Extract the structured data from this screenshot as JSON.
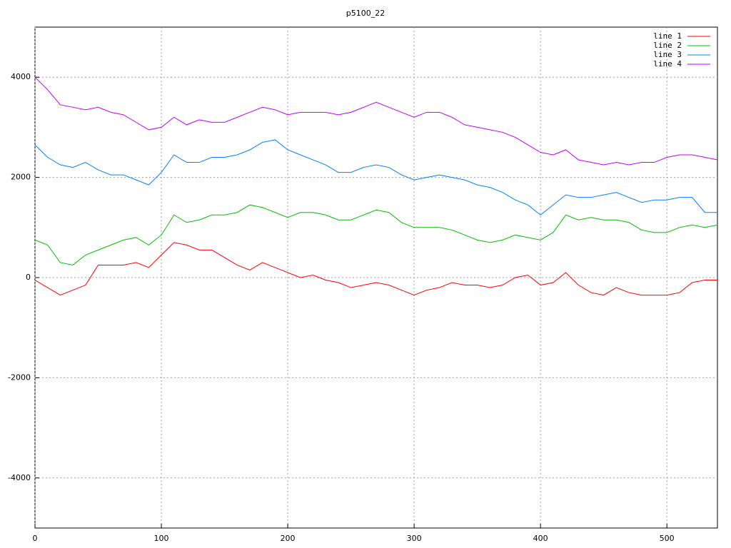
{
  "chart_data": {
    "type": "line",
    "title": "p5100_22",
    "x": [
      0,
      10,
      20,
      30,
      40,
      50,
      60,
      70,
      80,
      90,
      100,
      110,
      120,
      130,
      140,
      150,
      160,
      170,
      180,
      190,
      200,
      210,
      220,
      230,
      240,
      250,
      260,
      270,
      280,
      290,
      300,
      310,
      320,
      330,
      340,
      350,
      360,
      370,
      380,
      390,
      400,
      410,
      420,
      430,
      440,
      450,
      460,
      470,
      480,
      490,
      500,
      510,
      520,
      530,
      540
    ],
    "series": [
      {
        "name": "line 1",
        "color": "#ff0000",
        "values": [
          -50,
          -200,
          -350,
          -250,
          -150,
          250,
          250,
          250,
          300,
          200,
          450,
          700,
          650,
          550,
          550,
          400,
          250,
          150,
          300,
          200,
          100,
          0,
          50,
          -50,
          -100,
          -200,
          -150,
          -100,
          -150,
          -250,
          -350,
          -250,
          -200,
          -100,
          -150,
          -150,
          -200,
          -150,
          0,
          50,
          -150,
          -100,
          100,
          -150,
          -300,
          -350,
          -200,
          -300,
          -350,
          -350,
          -350,
          -300,
          -100,
          -50,
          -50
        ]
      },
      {
        "name": "line 2",
        "color": "#00c000",
        "values": [
          750,
          650,
          300,
          250,
          450,
          550,
          650,
          750,
          800,
          650,
          850,
          1250,
          1100,
          1150,
          1250,
          1250,
          1300,
          1450,
          1400,
          1300,
          1200,
          1300,
          1300,
          1250,
          1150,
          1150,
          1250,
          1350,
          1300,
          1100,
          1000,
          1000,
          1000,
          950,
          850,
          750,
          700,
          750,
          850,
          800,
          750,
          900,
          1250,
          1150,
          1200,
          1150,
          1150,
          1100,
          950,
          900,
          900,
          1000,
          1050,
          1000,
          1050
        ]
      },
      {
        "name": "line 3",
        "color": "#0080ff",
        "values": [
          2650,
          2400,
          2250,
          2200,
          2300,
          2150,
          2050,
          2050,
          1950,
          1850,
          2100,
          2450,
          2300,
          2300,
          2400,
          2400,
          2450,
          2550,
          2700,
          2750,
          2550,
          2450,
          2350,
          2250,
          2100,
          2100,
          2200,
          2250,
          2200,
          2050,
          1950,
          2000,
          2050,
          2000,
          1950,
          1850,
          1800,
          1700,
          1550,
          1450,
          1250,
          1450,
          1650,
          1600,
          1600,
          1650,
          1700,
          1600,
          1500,
          1550,
          1550,
          1600,
          1600,
          1300,
          1300
        ]
      },
      {
        "name": "line 4",
        "color": "#c000ff",
        "values": [
          4000,
          3750,
          3450,
          3400,
          3350,
          3400,
          3300,
          3250,
          3100,
          2950,
          3000,
          3200,
          3050,
          3150,
          3100,
          3100,
          3200,
          3300,
          3400,
          3350,
          3250,
          3300,
          3300,
          3300,
          3250,
          3300,
          3400,
          3500,
          3400,
          3300,
          3200,
          3300,
          3300,
          3200,
          3050,
          3000,
          2950,
          2900,
          2800,
          2650,
          2500,
          2450,
          2550,
          2350,
          2300,
          2250,
          2300,
          2250,
          2300,
          2300,
          2400,
          2450,
          2450,
          2400,
          2350
        ]
      }
    ],
    "xlim": [
      0,
      540
    ],
    "ylim": [
      -5000,
      5000
    ],
    "xticks": [
      0,
      100,
      200,
      300,
      400,
      500
    ],
    "yticks": [
      -4000,
      -2000,
      0,
      2000,
      4000
    ],
    "grid": true,
    "legend": "top-right"
  }
}
